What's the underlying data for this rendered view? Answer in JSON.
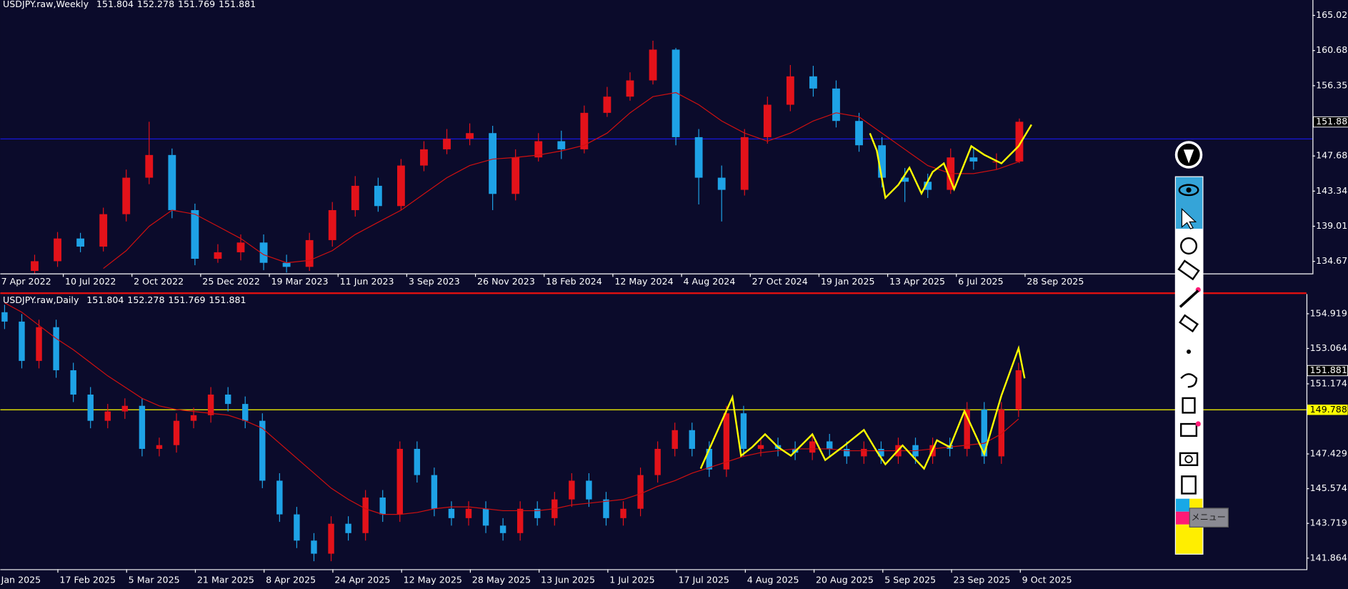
{
  "chart_data": [
    {
      "type": "candlestick",
      "title": "USDJPY.raw,Weekly",
      "header_values": [
        151.804,
        152.278,
        151.769,
        151.881
      ],
      "xlim": [
        -1.5,
        55.8
      ],
      "ylim": [
        133.19,
        166.92
      ],
      "yticks": [
        {
          "value": 165.02,
          "label": "165.020"
        },
        160.685,
        {
          "value": 156.35,
          "label": "156.350"
        },
        {
          "value": 147.68,
          "label": "147.680"
        },
        143.345,
        {
          "value": 139.01,
          "label": "139.010"
        },
        134.675
      ],
      "xticks": [
        {
          "value": -1.75,
          "label": "7 Apr 2022"
        },
        {
          "value": 1.25,
          "label": "10 Jul 2022"
        },
        {
          "value": 4.25,
          "label": "2 Oct 2022"
        },
        {
          "value": 7.25,
          "label": "25 Dec 2022"
        },
        {
          "value": 10.25,
          "label": "19 Mar 2023"
        },
        {
          "value": 13.25,
          "label": "11 Jun 2023"
        },
        {
          "value": 16.25,
          "label": "3 Sep 2023"
        },
        {
          "value": 19.25,
          "label": "26 Nov 2023"
        },
        {
          "value": 22.25,
          "label": "18 Feb 2024"
        },
        {
          "value": 25.25,
          "label": "12 May 2024"
        },
        {
          "value": 28.25,
          "label": "4 Aug 2024"
        },
        {
          "value": 31.25,
          "label": "27 Oct 2024"
        },
        {
          "value": 34.25,
          "label": "19 Jan 2025"
        },
        {
          "value": 37.25,
          "label": "13 Apr 2025"
        },
        {
          "value": 40.25,
          "label": "6 Jul 2025"
        },
        {
          "value": 43.25,
          "label": "28 Sep 2025"
        }
      ],
      "open": [
        133.5,
        134.7,
        137.5,
        136.5,
        140.5,
        145.0,
        147.8,
        141.0,
        135.0,
        135.8,
        137.0,
        134.5,
        134.0,
        137.3,
        141.0,
        144.0,
        141.5,
        146.5,
        148.5,
        149.8,
        150.5,
        143.0,
        147.5,
        149.5,
        148.5,
        153.0,
        155.0,
        157.0,
        160.8,
        150.0,
        145.0,
        143.5,
        150.0,
        154.0,
        157.5,
        156.0,
        152.0,
        149.0,
        145.0,
        144.5,
        143.5,
        147.5,
        147.0,
        147.0
      ],
      "high": [
        135.5,
        138.3,
        138.2,
        141.3,
        146.0,
        151.9,
        148.6,
        141.8,
        136.8,
        138.0,
        138.0,
        135.5,
        138.2,
        142.0,
        145.2,
        145.0,
        147.3,
        149.5,
        151.0,
        151.7,
        151.4,
        148.5,
        150.5,
        150.8,
        153.9,
        156.2,
        158.0,
        161.9,
        161.0,
        151.0,
        146.5,
        151.0,
        155.0,
        158.9,
        158.8,
        157.0,
        153.0,
        150.0,
        146.2,
        145.5,
        148.6,
        148.7,
        148.0,
        152.3
      ],
      "low": [
        133.0,
        134.0,
        135.8,
        135.9,
        139.6,
        144.2,
        140.0,
        134.2,
        134.5,
        134.8,
        133.6,
        133.3,
        133.5,
        136.5,
        140.2,
        140.8,
        141.0,
        145.8,
        147.9,
        149.0,
        141.0,
        142.2,
        147.0,
        147.3,
        148.0,
        152.5,
        154.5,
        156.5,
        149.0,
        141.7,
        139.6,
        142.8,
        149.2,
        153.2,
        155.0,
        151.2,
        148.2,
        143.8,
        142.0,
        142.5,
        143.0,
        146.0,
        146.0,
        146.8
      ],
      "close": [
        134.7,
        137.5,
        136.5,
        140.5,
        145.0,
        147.8,
        141.0,
        135.0,
        135.8,
        137.0,
        134.5,
        134.0,
        137.3,
        141.0,
        144.0,
        141.5,
        146.5,
        148.5,
        149.8,
        150.5,
        143.0,
        147.5,
        149.5,
        148.5,
        153.0,
        155.0,
        157.0,
        160.8,
        150.0,
        145.0,
        143.5,
        150.0,
        154.0,
        157.5,
        156.0,
        152.0,
        149.0,
        145.0,
        144.5,
        143.5,
        147.5,
        147.0,
        147.0,
        151.9
      ],
      "up_color": "#e3121a",
      "down_color": "#1ea2e6",
      "ma": {
        "color": "#d01010",
        "values": [
          null,
          null,
          null,
          133.8,
          136.0,
          139.0,
          141.0,
          140.5,
          139.0,
          137.5,
          135.5,
          134.5,
          134.8,
          136.0,
          138.0,
          139.5,
          141.0,
          143.0,
          145.0,
          146.5,
          147.3,
          147.5,
          147.8,
          148.3,
          149.0,
          150.5,
          153.0,
          155.0,
          155.5,
          154.0,
          152.0,
          150.5,
          149.5,
          150.5,
          152.0,
          153.0,
          152.5,
          150.5,
          148.5,
          146.5,
          145.5,
          145.5,
          146.0,
          147.0
        ]
      },
      "hline": {
        "value": 149.788,
        "color": "#1a1aee",
        "show_label": false
      },
      "last_price": 151.881
    },
    {
      "type": "candlestick",
      "title": "USDJPY.raw,Daily",
      "header_values": [
        151.804,
        152.278,
        151.769,
        151.881
      ],
      "xlim": [
        -0.25,
        75.75
      ],
      "ylim": [
        141.27,
        155.97
      ],
      "yticks": [
        154.919,
        153.064,
        151.174,
        147.429,
        145.574,
        143.719,
        141.864
      ],
      "xticks": [
        {
          "value": -0.9,
          "label": "Jan 2025"
        },
        {
          "value": 3.1,
          "label": "17 Feb 2025"
        },
        {
          "value": 7.1,
          "label": "5 Mar 2025"
        },
        {
          "value": 11.1,
          "label": "21 Mar 2025"
        },
        {
          "value": 15.1,
          "label": "8 Apr 2025"
        },
        {
          "value": 19.1,
          "label": "24 Apr 2025"
        },
        {
          "value": 23.1,
          "label": "12 May 2025"
        },
        {
          "value": 27.1,
          "label": "28 May 2025"
        },
        {
          "value": 31.1,
          "label": "13 Jun 2025"
        },
        {
          "value": 35.1,
          "label": "1 Jul 2025"
        },
        {
          "value": 39.1,
          "label": "17 Jul 2025"
        },
        {
          "value": 43.1,
          "label": "4 Aug 2025"
        },
        {
          "value": 47.1,
          "label": "20 Aug 2025"
        },
        {
          "value": 51.1,
          "label": "5 Sep 2025"
        },
        {
          "value": 55.1,
          "label": "23 Sep 2025"
        },
        {
          "value": 59.1,
          "label": "9 Oct 2025"
        }
      ],
      "open": [
        155.0,
        154.5,
        152.4,
        154.2,
        151.9,
        150.6,
        149.2,
        149.7,
        150.0,
        147.7,
        147.9,
        149.2,
        149.5,
        150.6,
        150.1,
        149.2,
        146.0,
        144.2,
        142.8,
        142.1,
        143.7,
        143.2,
        145.1,
        144.2,
        147.7,
        146.3,
        144.5,
        144.0,
        144.5,
        143.6,
        143.2,
        144.5,
        144.0,
        145.0,
        146.0,
        145.0,
        144.0,
        144.5,
        146.3,
        147.7,
        148.7,
        147.7,
        146.6,
        149.6,
        147.7,
        147.9,
        147.7,
        147.5,
        148.1,
        147.7,
        147.3,
        147.7,
        147.3,
        147.9,
        147.3,
        147.9,
        147.7,
        149.8,
        147.3,
        149.8
      ],
      "high": [
        155.4,
        154.9,
        154.6,
        154.6,
        152.3,
        151.0,
        150.1,
        150.4,
        150.4,
        148.3,
        149.6,
        149.9,
        151.0,
        151.0,
        150.5,
        149.6,
        146.4,
        144.6,
        143.2,
        144.1,
        144.1,
        145.5,
        145.5,
        148.1,
        148.1,
        146.7,
        144.9,
        144.9,
        144.9,
        144.0,
        144.9,
        144.9,
        145.4,
        146.4,
        146.4,
        145.4,
        144.9,
        146.7,
        148.1,
        149.1,
        149.1,
        148.1,
        150.0,
        150.0,
        148.3,
        148.3,
        148.1,
        148.5,
        148.5,
        148.1,
        148.1,
        148.1,
        148.3,
        148.3,
        148.3,
        148.3,
        150.2,
        150.2,
        150.2,
        152.3
      ],
      "low": [
        154.1,
        152.0,
        152.0,
        151.5,
        150.2,
        148.8,
        148.8,
        149.3,
        147.3,
        147.3,
        147.5,
        148.8,
        149.1,
        149.7,
        148.8,
        145.6,
        143.8,
        142.4,
        141.7,
        141.7,
        142.8,
        142.8,
        143.8,
        143.8,
        145.9,
        144.1,
        143.6,
        143.6,
        143.2,
        142.8,
        142.8,
        143.6,
        143.6,
        144.6,
        144.6,
        143.6,
        143.6,
        144.1,
        145.9,
        147.3,
        147.3,
        146.2,
        146.2,
        147.3,
        147.3,
        147.3,
        147.1,
        147.1,
        147.3,
        146.9,
        146.9,
        146.9,
        146.9,
        146.9,
        146.9,
        147.3,
        147.3,
        146.9,
        146.9,
        149.4
      ],
      "close": [
        154.5,
        152.4,
        154.2,
        151.9,
        150.6,
        149.2,
        149.7,
        150.0,
        147.7,
        147.9,
        149.2,
        149.5,
        150.6,
        150.1,
        149.2,
        146.0,
        144.2,
        142.8,
        142.1,
        143.7,
        143.2,
        145.1,
        144.2,
        147.7,
        146.3,
        144.5,
        144.0,
        144.5,
        143.6,
        143.2,
        144.5,
        144.0,
        145.0,
        146.0,
        145.0,
        144.0,
        144.5,
        146.3,
        147.7,
        148.7,
        147.7,
        146.6,
        149.6,
        147.7,
        147.9,
        147.7,
        147.5,
        148.1,
        147.7,
        147.3,
        147.7,
        147.3,
        147.9,
        147.3,
        147.9,
        147.7,
        149.8,
        147.3,
        149.8,
        151.9
      ],
      "up_color": "#e3121a",
      "down_color": "#1ea2e6",
      "ma": {
        "color": "#d01010",
        "values": [
          155.5,
          155.0,
          154.3,
          153.6,
          153.0,
          152.3,
          151.6,
          151.0,
          150.4,
          150.0,
          149.8,
          149.7,
          149.6,
          149.5,
          149.2,
          148.8,
          148.0,
          147.2,
          146.4,
          145.6,
          145.0,
          144.5,
          144.2,
          144.2,
          144.3,
          144.5,
          144.6,
          144.6,
          144.5,
          144.4,
          144.4,
          144.4,
          144.5,
          144.7,
          144.8,
          144.9,
          145.0,
          145.3,
          145.7,
          146.0,
          146.4,
          146.7,
          147.0,
          147.3,
          147.5,
          147.6,
          147.7,
          147.7,
          147.7,
          147.6,
          147.6,
          147.6,
          147.6,
          147.6,
          147.7,
          147.8,
          147.9,
          148.0,
          148.5,
          149.3
        ]
      },
      "hline": {
        "value": 149.788,
        "color": "#ffff00",
        "show_label": true
      },
      "last_price": 151.881
    }
  ],
  "toolbar": {
    "tooltip": "メニュー"
  }
}
